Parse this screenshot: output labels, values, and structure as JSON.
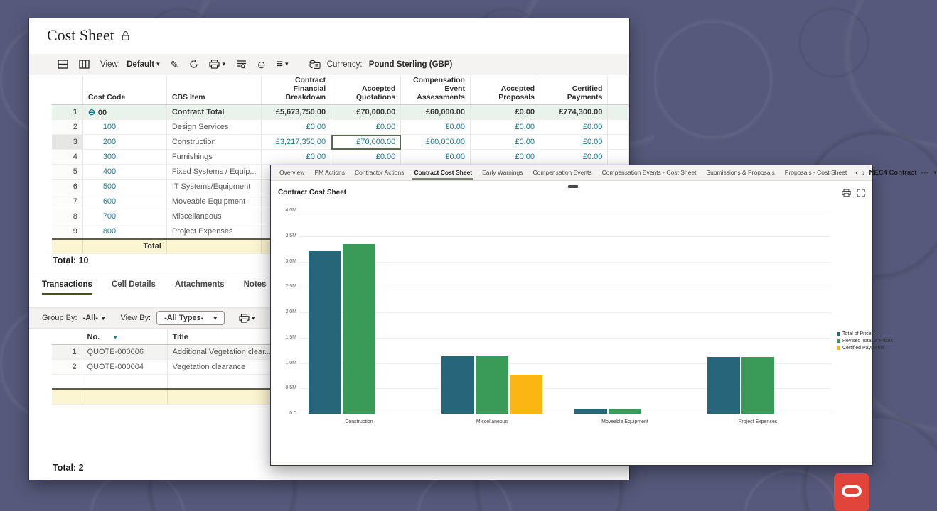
{
  "icons": {
    "caret_down": "▾",
    "pencil": "✎",
    "minus_circle": "⊖",
    "hamburger": "≡",
    "sort_desc": "▼",
    "prev": "‹",
    "next": "›",
    "overflow": "•••",
    "collapse_row": "⊖"
  },
  "back_window": {
    "title": "Cost Sheet",
    "toolbar": {
      "view_label": "View:",
      "view_value": "Default",
      "currency_label": "Currency:",
      "currency_value": "Pound Sterling (GBP)"
    },
    "cost_table": {
      "columns": [
        "Cost Code",
        "CBS Item",
        "Contract Financial Breakdown",
        "Accepted Quotations",
        "Compensation Event Assessments",
        "Accepted Proposals",
        "Certified Payments"
      ],
      "selected_column": "Accepted Quotations",
      "rows": [
        {
          "num": "1",
          "code": "00",
          "item": "Contract Total",
          "cfb": "£5,673,750.00",
          "aq": "£70,000.00",
          "cea": "£60,000.00",
          "ap": "£0.00",
          "cp": "£774,300.00",
          "style": "total",
          "expander": true
        },
        {
          "num": "2",
          "code": "100",
          "item": "Design Services",
          "cfb": "£0.00",
          "aq": "£0.00",
          "cea": "£0.00",
          "ap": "£0.00",
          "cp": "£0.00"
        },
        {
          "num": "3",
          "code": "200",
          "item": "Construction",
          "cfb": "£3,217,350.00",
          "aq": "£70,000.00",
          "cea": "£60,000.00",
          "ap": "£0.00",
          "cp": "£0.00",
          "selected": "aq",
          "row_selected": true
        },
        {
          "num": "4",
          "code": "300",
          "item": "Furnishings",
          "cfb": "£0.00",
          "aq": "£0.00",
          "cea": "£0.00",
          "ap": "£0.00",
          "cp": "£0.00"
        },
        {
          "num": "5",
          "code": "400",
          "item": "Fixed Systems / Equip...",
          "cfb": "",
          "aq": "",
          "cea": "",
          "ap": "",
          "cp": ""
        },
        {
          "num": "6",
          "code": "500",
          "item": "IT Systems/Equipment",
          "cfb": "",
          "aq": "",
          "cea": "",
          "ap": "",
          "cp": ""
        },
        {
          "num": "7",
          "code": "600",
          "item": "Moveable Equipment",
          "cfb": "",
          "aq": "",
          "cea": "",
          "ap": "",
          "cp": ""
        },
        {
          "num": "8",
          "code": "700",
          "item": "Miscellaneous",
          "cfb": "",
          "aq": "",
          "cea": "",
          "ap": "",
          "cp": ""
        },
        {
          "num": "9",
          "code": "800",
          "item": "Project Expenses",
          "cfb": "",
          "aq": "",
          "cea": "",
          "ap": "",
          "cp": ""
        }
      ],
      "footer_label": "Total",
      "total_text": "Total: 10"
    },
    "detail_tabs": [
      "Transactions",
      "Cell Details",
      "Attachments",
      "Notes"
    ],
    "active_detail_tab": "Transactions",
    "filters": {
      "group_by_label": "Group By:",
      "group_by_value": "-All-",
      "view_by_label": "View By:",
      "view_by_value": "-All Types-"
    },
    "transactions_table": {
      "columns": [
        "No.",
        "Title"
      ],
      "rows": [
        {
          "num": "1",
          "no": "QUOTE-000006",
          "title": "Additional Vegetation clear..."
        },
        {
          "num": "2",
          "no": "QUOTE-000004",
          "title": "Vegetation clearance"
        }
      ],
      "total_text": "Total: 2"
    }
  },
  "front_window": {
    "tabs": [
      "Overview",
      "PM Actions",
      "Contractor Actions",
      "Contract Cost Sheet",
      "Early Warnings",
      "Compensation Events",
      "Compensation Events - Cost Sheet",
      "Submissions & Proposals",
      "Proposals - Cost Sheet"
    ],
    "active_tab": "Contract Cost Sheet",
    "context_label": "NEC4 Contract",
    "panel_title": "Contract Cost Sheet"
  },
  "chart_data": {
    "type": "bar",
    "title": "Contract Cost Sheet",
    "categories": [
      "Construction",
      "Miscellaneous",
      "Moveable Equipment",
      "Project Expenses"
    ],
    "series": [
      {
        "name": "Total of Prices",
        "color": "#26657a",
        "values": [
          3217350,
          1130000,
          100000,
          1120000
        ]
      },
      {
        "name": "Revised Total of Prices",
        "color": "#3a9a58",
        "values": [
          3347350,
          1130000,
          100000,
          1120000
        ]
      },
      {
        "name": "Certified Payments",
        "color": "#fbb614",
        "values": [
          null,
          774300,
          null,
          null
        ]
      }
    ],
    "y_ticks": [
      "4.0M",
      "3.5M",
      "3.0M",
      "2.5M",
      "2.0M",
      "1.5M",
      "1.0M",
      "0.5M",
      "0.0"
    ],
    "ylim": [
      0,
      4000000
    ],
    "grid": true,
    "legend_position": "right"
  },
  "colors": {
    "accent_teal": "#1b7b93",
    "bar_teal": "#26657a",
    "bar_green": "#3a9a58",
    "bar_yellow": "#fbb614",
    "oracle_red": "#e0443a",
    "total_row_yellow": "#fbf5d2",
    "contract_total_green": "#e9f3ec"
  }
}
